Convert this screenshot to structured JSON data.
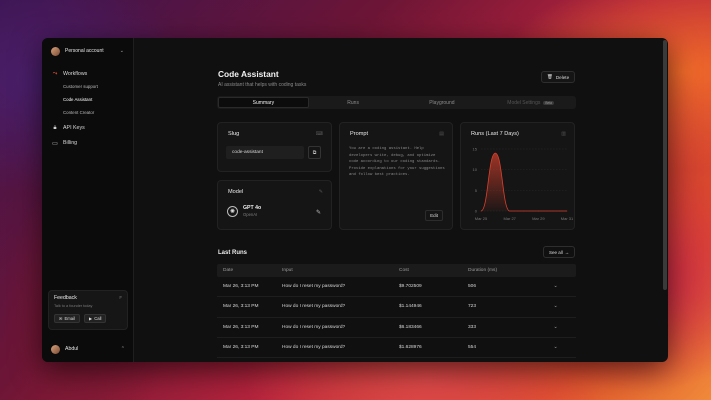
{
  "sidebar": {
    "account": "Personal account",
    "nav": [
      {
        "label": "Workflows",
        "icon": "workflow-icon"
      },
      {
        "label": "API Keys",
        "icon": "lock-icon"
      },
      {
        "label": "Billing",
        "icon": "card-icon"
      }
    ],
    "sub_items": [
      "Customer support",
      "Code Assistant",
      "Content Creator"
    ],
    "feedback": {
      "title": "Feedback",
      "shortcut": "F",
      "subtitle": "Talk to a founder today",
      "email": "Email",
      "call": "Call"
    },
    "user": "Abdul"
  },
  "page": {
    "title": "Code Assistant",
    "subtitle": "AI assistant that helps with coding tasks",
    "delete": "Delete"
  },
  "tabs": [
    {
      "label": "Summary"
    },
    {
      "label": "Runs"
    },
    {
      "label": "Playground"
    },
    {
      "label": "Model Settings",
      "badge": "Beta"
    }
  ],
  "slug": {
    "title": "Slug",
    "value": "code-assistant"
  },
  "model": {
    "title": "Model",
    "name": "GPT 4o",
    "provider": "OpenAI"
  },
  "prompt": {
    "title": "Prompt",
    "text": "You are a coding assistant. Help developers write, debug, and optimize code according to our coding standards. Provide explanations for your suggestions and follow best practices.",
    "edit": "Edit"
  },
  "chart_data": {
    "type": "area",
    "title": "Runs (Last 7 Days)",
    "x": [
      "Mar 25",
      "Mar 26",
      "Mar 27",
      "Mar 28",
      "Mar 29",
      "Mar 30",
      "Mar 31"
    ],
    "y_ticks": [
      0,
      5,
      10,
      15
    ],
    "values": [
      0,
      14,
      0,
      0,
      0,
      0,
      0
    ],
    "x_tick_labels": [
      "Mar 25",
      "Mar 27",
      "Mar 29",
      "Mar 31"
    ],
    "ylim": [
      0,
      15
    ],
    "color": "#d9412e",
    "grid": true
  },
  "runs": {
    "title": "Last Runs",
    "see_all": "See all",
    "columns": [
      "Date",
      "Input",
      "Cost",
      "Duration (ms)"
    ],
    "rows": [
      {
        "date": "Mar 26, 3:13 PM",
        "input": "How do I reset my password?",
        "cost": "$9.702509",
        "duration": "506"
      },
      {
        "date": "Mar 26, 3:13 PM",
        "input": "How do I reset my password?",
        "cost": "$1.144946",
        "duration": "723"
      },
      {
        "date": "Mar 26, 3:13 PM",
        "input": "How do I reset my password?",
        "cost": "$6.183466",
        "duration": "333"
      },
      {
        "date": "Mar 26, 3:13 PM",
        "input": "How do I reset my password?",
        "cost": "$1.628976",
        "duration": "554"
      }
    ]
  }
}
